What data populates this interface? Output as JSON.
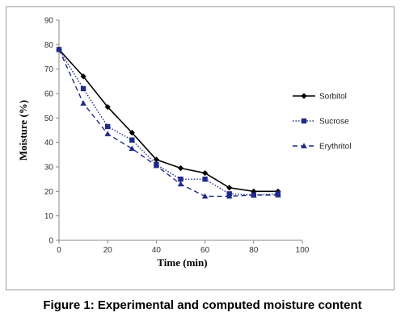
{
  "caption": "Figure 1:  Experimental and computed moisture content",
  "chart_data": {
    "type": "line",
    "xlabel": "Time (min)",
    "ylabel": "Moisture (%)",
    "xlim": [
      0,
      100
    ],
    "ylim": [
      0,
      90
    ],
    "x_ticks": [
      0,
      20,
      40,
      60,
      80,
      100
    ],
    "y_ticks": [
      0,
      10,
      20,
      30,
      40,
      50,
      60,
      70,
      80,
      90
    ],
    "grid": false,
    "legend_position": "right",
    "series": [
      {
        "name": "Sorbitol",
        "line_style": "solid",
        "marker": "diamond",
        "color": "#000000",
        "x": [
          0,
          10,
          20,
          30,
          40,
          50,
          60,
          70,
          80,
          90
        ],
        "y": [
          78,
          67,
          54.5,
          44,
          33,
          29.5,
          27.5,
          21.5,
          20,
          20
        ]
      },
      {
        "name": "Sucrose",
        "line_style": "dotted",
        "marker": "square",
        "color": "#1f2a8a",
        "x": [
          0,
          10,
          20,
          30,
          40,
          50,
          60,
          70,
          80,
          90
        ],
        "y": [
          78,
          62,
          46.5,
          41,
          31,
          25,
          25,
          19,
          18.5,
          19
        ]
      },
      {
        "name": "Erythritol",
        "line_style": "dashed",
        "marker": "triangle",
        "color": "#1f2a8a",
        "x": [
          0,
          10,
          20,
          30,
          40,
          50,
          60,
          70,
          80,
          90
        ],
        "y": [
          78,
          56,
          43.5,
          37.5,
          30.5,
          23,
          18,
          18,
          18.5,
          18.5
        ]
      }
    ]
  }
}
